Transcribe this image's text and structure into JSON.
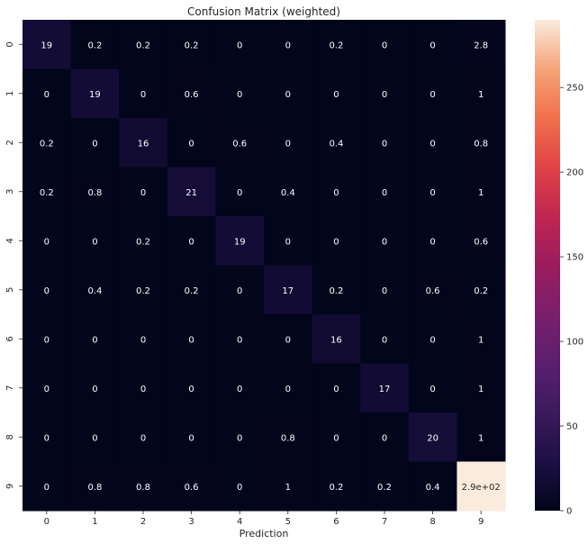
{
  "chart_data": {
    "type": "heatmap",
    "title": "Confusion Matrix (weighted)",
    "xlabel": "Prediction",
    "ylabel": "",
    "x_categories": [
      "0",
      "1",
      "2",
      "3",
      "4",
      "5",
      "6",
      "7",
      "8",
      "9"
    ],
    "y_categories": [
      "0",
      "1",
      "2",
      "3",
      "4",
      "5",
      "6",
      "7",
      "8",
      "9"
    ],
    "values": [
      [
        19,
        0.2,
        0.2,
        0.2,
        0,
        0,
        0.2,
        0,
        0,
        2.8
      ],
      [
        0,
        19,
        0,
        0.6,
        0,
        0,
        0,
        0,
        0,
        1
      ],
      [
        0.2,
        0,
        16,
        0,
        0.6,
        0,
        0.4,
        0,
        0,
        0.8
      ],
      [
        0.2,
        0.8,
        0,
        21,
        0,
        0.4,
        0,
        0,
        0,
        1
      ],
      [
        0,
        0,
        0.2,
        0,
        19,
        0,
        0,
        0,
        0,
        0.6
      ],
      [
        0,
        0.4,
        0.2,
        0.2,
        0,
        17,
        0.2,
        0,
        0.6,
        0.2
      ],
      [
        0,
        0,
        0,
        0,
        0,
        0,
        16,
        0,
        0,
        1
      ],
      [
        0,
        0,
        0,
        0,
        0,
        0,
        0,
        17,
        0,
        1
      ],
      [
        0,
        0,
        0,
        0,
        0,
        0.8,
        0,
        0,
        20,
        1
      ],
      [
        0,
        0.8,
        0.8,
        0.6,
        0,
        1,
        0.2,
        0.2,
        0.4,
        290
      ]
    ],
    "cell_labels": [
      [
        "19",
        "0.2",
        "0.2",
        "0.2",
        "0",
        "0",
        "0.2",
        "0",
        "0",
        "2.8"
      ],
      [
        "0",
        "19",
        "0",
        "0.6",
        "0",
        "0",
        "0",
        "0",
        "0",
        "1"
      ],
      [
        "0.2",
        "0",
        "16",
        "0",
        "0.6",
        "0",
        "0.4",
        "0",
        "0",
        "0.8"
      ],
      [
        "0.2",
        "0.8",
        "0",
        "21",
        "0",
        "0.4",
        "0",
        "0",
        "0",
        "1"
      ],
      [
        "0",
        "0",
        "0.2",
        "0",
        "19",
        "0",
        "0",
        "0",
        "0",
        "0.6"
      ],
      [
        "0",
        "0.4",
        "0.2",
        "0.2",
        "0",
        "17",
        "0.2",
        "0",
        "0.6",
        "0.2"
      ],
      [
        "0",
        "0",
        "0",
        "0",
        "0",
        "0",
        "16",
        "0",
        "0",
        "1"
      ],
      [
        "0",
        "0",
        "0",
        "0",
        "0",
        "0",
        "0",
        "17",
        "0",
        "1"
      ],
      [
        "0",
        "0",
        "0",
        "0",
        "0",
        "0.8",
        "0",
        "0",
        "20",
        "1"
      ],
      [
        "0",
        "0.8",
        "0.8",
        "0.6",
        "0",
        "1",
        "0.2",
        "0.2",
        "0.4",
        "2.9e+02"
      ]
    ],
    "colorbar": {
      "min": 0,
      "max": 290,
      "ticks": [
        0,
        50,
        100,
        150,
        200,
        250
      ],
      "colormap": "rocket"
    },
    "colors": {
      "low": "#03051a",
      "high": "#faebdd",
      "annotation_dark_bg": "#ffffff",
      "annotation_light_bg": "#262626"
    }
  }
}
